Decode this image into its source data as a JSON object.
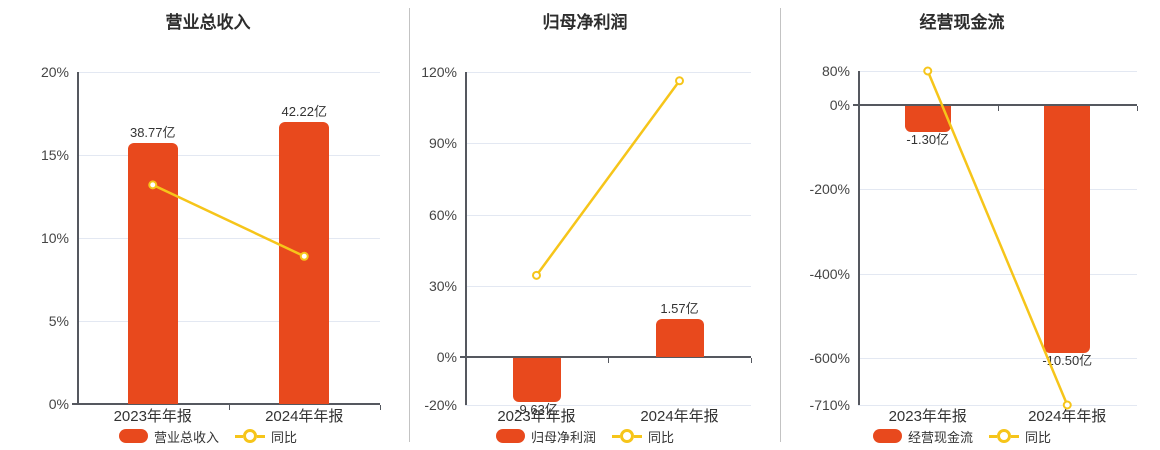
{
  "colors": {
    "bar": "#e8491d",
    "line": "#f6c51a",
    "grid": "#e3e8f2",
    "axis": "#55585f",
    "divider": "#c3c3c3",
    "text": "#333333"
  },
  "chart_data": [
    {
      "type": "bar",
      "combo": "bar+line",
      "title": "营业总收入",
      "categories": [
        "2023年年报",
        "2024年年报"
      ],
      "series": [
        {
          "name": "营业总收入",
          "type": "bar",
          "unit": "亿",
          "values": [
            38.77,
            42.22
          ],
          "labels": [
            "38.77亿",
            "42.22亿"
          ],
          "plotted_on_pct_axis": [
            15.7,
            17.0
          ]
        },
        {
          "name": "同比",
          "type": "line",
          "unit": "%",
          "values": [
            13.2,
            8.9
          ]
        }
      ],
      "y_axis": {
        "unit": "%",
        "min": 0,
        "max": 20,
        "tick_values": [
          20,
          15,
          10,
          5,
          0
        ],
        "tick_labels": [
          "20%",
          "15%",
          "10%",
          "5%",
          "0%"
        ]
      },
      "legend": [
        "营业总收入",
        "同比"
      ],
      "legend_position": "bottom",
      "grid": true
    },
    {
      "type": "bar",
      "combo": "bar+line",
      "title": "归母净利润",
      "categories": [
        "2023年年报",
        "2024年年报"
      ],
      "series": [
        {
          "name": "归母净利润",
          "type": "bar",
          "unit": "亿",
          "values": [
            -9.63,
            1.57
          ],
          "labels": [
            "-9.63亿",
            "1.57亿"
          ],
          "plotted_on_pct_axis": [
            -18.6,
            16.1
          ]
        },
        {
          "name": "同比",
          "type": "line",
          "unit": "%",
          "values": [
            34.5,
            116.3
          ]
        }
      ],
      "y_axis": {
        "unit": "%",
        "min": -20,
        "max": 120,
        "tick_values": [
          120,
          90,
          60,
          30,
          0,
          -20
        ],
        "tick_labels": [
          "120%",
          "90%",
          "60%",
          "30%",
          "0%",
          "-20%"
        ]
      },
      "legend": [
        "归母净利润",
        "同比"
      ],
      "legend_position": "bottom",
      "grid": true
    },
    {
      "type": "bar",
      "combo": "bar+line",
      "title": "经营现金流",
      "categories": [
        "2023年年报",
        "2024年年报"
      ],
      "series": [
        {
          "name": "经营现金流",
          "type": "bar",
          "unit": "亿",
          "values": [
            -1.3,
            -10.5
          ],
          "labels": [
            "-1.30亿",
            "-10.50亿"
          ],
          "plotted_on_pct_axis": [
            -65,
            -588
          ]
        },
        {
          "name": "同比",
          "type": "line",
          "unit": "%",
          "values": [
            80,
            -710
          ]
        }
      ],
      "y_axis": {
        "unit": "%",
        "min": -710,
        "max": 80,
        "tick_values": [
          80,
          0,
          -200,
          -400,
          -600,
          -710
        ],
        "tick_labels": [
          "80%",
          "0%",
          "-200%",
          "-400%",
          "-600%",
          "-710%"
        ]
      },
      "legend": [
        "经营现金流",
        "同比"
      ],
      "legend_position": "bottom",
      "grid": true
    }
  ]
}
